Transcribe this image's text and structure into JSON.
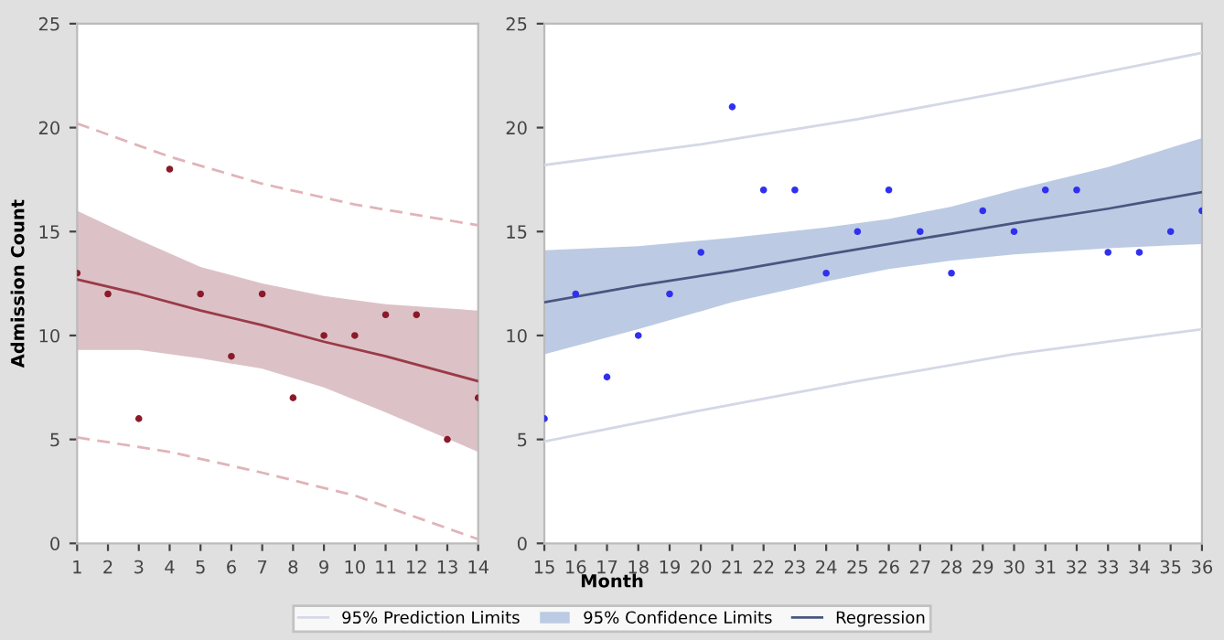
{
  "chart_data": [
    {
      "type": "scatter",
      "ylabel": "Admission Count",
      "xlim": [
        1,
        14
      ],
      "xticks": [
        1,
        2,
        3,
        4,
        5,
        6,
        7,
        8,
        9,
        10,
        11,
        12,
        13,
        14
      ],
      "ylim": [
        0,
        25
      ],
      "yticks": [
        0,
        5,
        10,
        15,
        20,
        25
      ],
      "grid": false,
      "series": [
        {
          "type": "line",
          "color": "#e0b4b8",
          "line_style": "dashed",
          "x": [
            1,
            4,
            7,
            10,
            14
          ],
          "values": [
            20.2,
            18.6,
            17.3,
            16.3,
            15.3
          ]
        },
        {
          "type": "line",
          "color": "#e0b4b8",
          "line_style": "dashed",
          "x": [
            1,
            4,
            7,
            10,
            14
          ],
          "values": [
            5.1,
            4.4,
            3.4,
            2.3,
            0.2
          ]
        },
        {
          "type": "area",
          "color": "#dcc2c6"
        },
        {
          "type": "line",
          "color": "#9b3a48",
          "line_style": "solid",
          "x": [
            1,
            3,
            5,
            7,
            9,
            11,
            14
          ],
          "values": [
            12.7,
            12.0,
            11.2,
            10.5,
            9.7,
            9.0,
            7.8
          ],
          "lower": [
            9.3,
            9.3,
            8.9,
            8.4,
            7.5,
            6.3,
            4.4
          ],
          "upper": [
            16.0,
            14.6,
            13.3,
            12.5,
            11.9,
            11.5,
            11.2
          ]
        },
        {
          "color": "#8b1a2a",
          "marker": "circle",
          "x": [
            1,
            2,
            3,
            4,
            5,
            6,
            7,
            8,
            9,
            10,
            11,
            12,
            13,
            14
          ],
          "values": [
            13,
            12,
            6,
            18,
            12,
            9,
            12,
            7,
            10,
            10,
            11,
            11,
            5,
            7
          ]
        }
      ]
    },
    {
      "type": "scatter",
      "xlabel": "Month",
      "xlim": [
        15,
        36
      ],
      "xticks": [
        15,
        16,
        17,
        18,
        19,
        20,
        21,
        22,
        23,
        24,
        25,
        26,
        27,
        28,
        29,
        30,
        31,
        32,
        33,
        34,
        35,
        36
      ],
      "ylim": [
        0,
        25
      ],
      "yticks": [
        0,
        5,
        10,
        15,
        20,
        25
      ],
      "grid": false,
      "legend": "bottom",
      "series": [
        {
          "type": "line",
          "name": "95% Prediction Limits",
          "color": "#d4d8e6",
          "line_style": "solid",
          "x": [
            15,
            20,
            25,
            30,
            36
          ],
          "values": [
            18.2,
            19.2,
            20.4,
            21.8,
            23.6
          ]
        },
        {
          "type": "line",
          "color": "#d4d8e6",
          "line_style": "solid",
          "x": [
            15,
            20,
            25,
            30,
            36
          ],
          "values": [
            4.9,
            6.4,
            7.8,
            9.1,
            10.3
          ]
        },
        {
          "type": "area",
          "name": "95% Confidence Limits",
          "color": "#bccbe3"
        },
        {
          "type": "line",
          "name": "Regression",
          "color": "#4a5680",
          "line_style": "solid",
          "x": [
            15,
            18,
            21,
            24,
            26,
            28,
            30,
            33,
            36
          ],
          "values": [
            11.6,
            12.4,
            13.1,
            13.9,
            14.4,
            14.9,
            15.4,
            16.1,
            16.9
          ],
          "lower": [
            9.1,
            10.3,
            11.6,
            12.6,
            13.2,
            13.6,
            13.9,
            14.2,
            14.4
          ],
          "upper": [
            14.1,
            14.3,
            14.7,
            15.2,
            15.6,
            16.2,
            17.0,
            18.1,
            19.5
          ]
        },
        {
          "color": "#3030f0",
          "marker": "circle",
          "x": [
            15,
            16,
            17,
            18,
            19,
            20,
            21,
            22,
            23,
            24,
            25,
            26,
            27,
            28,
            29,
            30,
            31,
            32,
            33,
            34,
            35,
            36
          ],
          "values": [
            6,
            12,
            8,
            10,
            12,
            14,
            21,
            17,
            17,
            13,
            15,
            17,
            15,
            13,
            16,
            15,
            17,
            17,
            14,
            14,
            15,
            16
          ]
        }
      ]
    }
  ]
}
